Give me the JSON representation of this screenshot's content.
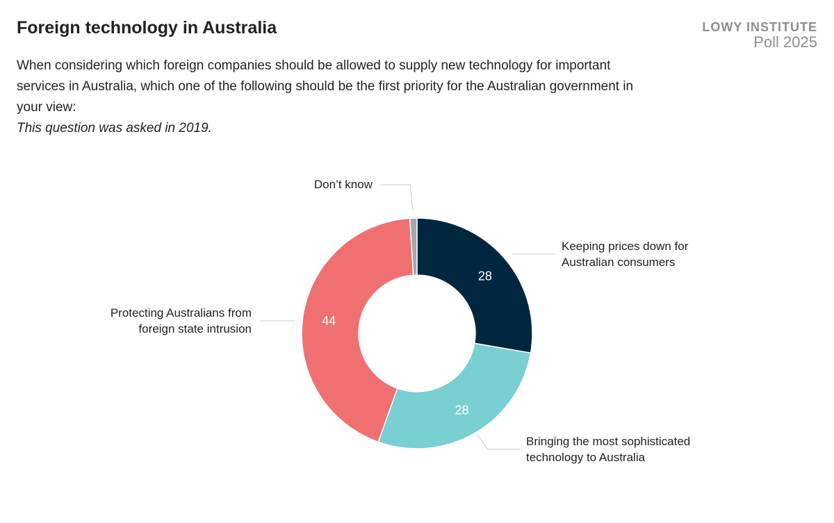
{
  "header": {
    "title": "Foreign technology in Australia",
    "question": "When considering which foreign companies should be allowed to supply new technology for important services in Australia, which one of the following should be the first priority for the Australian government in your view:",
    "note": "This question was asked in 2019."
  },
  "brand": {
    "name": "LOWY INSTITUTE",
    "poll": "Poll 2025"
  },
  "chart_data": {
    "type": "pie",
    "donut": true,
    "slices": [
      {
        "label": "Keeping prices down for Australian consumers",
        "value": 28,
        "color": "#002640"
      },
      {
        "label": "Bringing the most sophisticated technology to Australia",
        "value": 28,
        "color": "#7acfd2"
      },
      {
        "label": "Protecting Australians from foreign state intrusion",
        "value": 44,
        "color": "#f07072"
      },
      {
        "label": "Don’t know",
        "value": 1,
        "color": "#a5a8ab"
      }
    ],
    "value_labels": [
      "28",
      "28",
      "44",
      ""
    ]
  }
}
